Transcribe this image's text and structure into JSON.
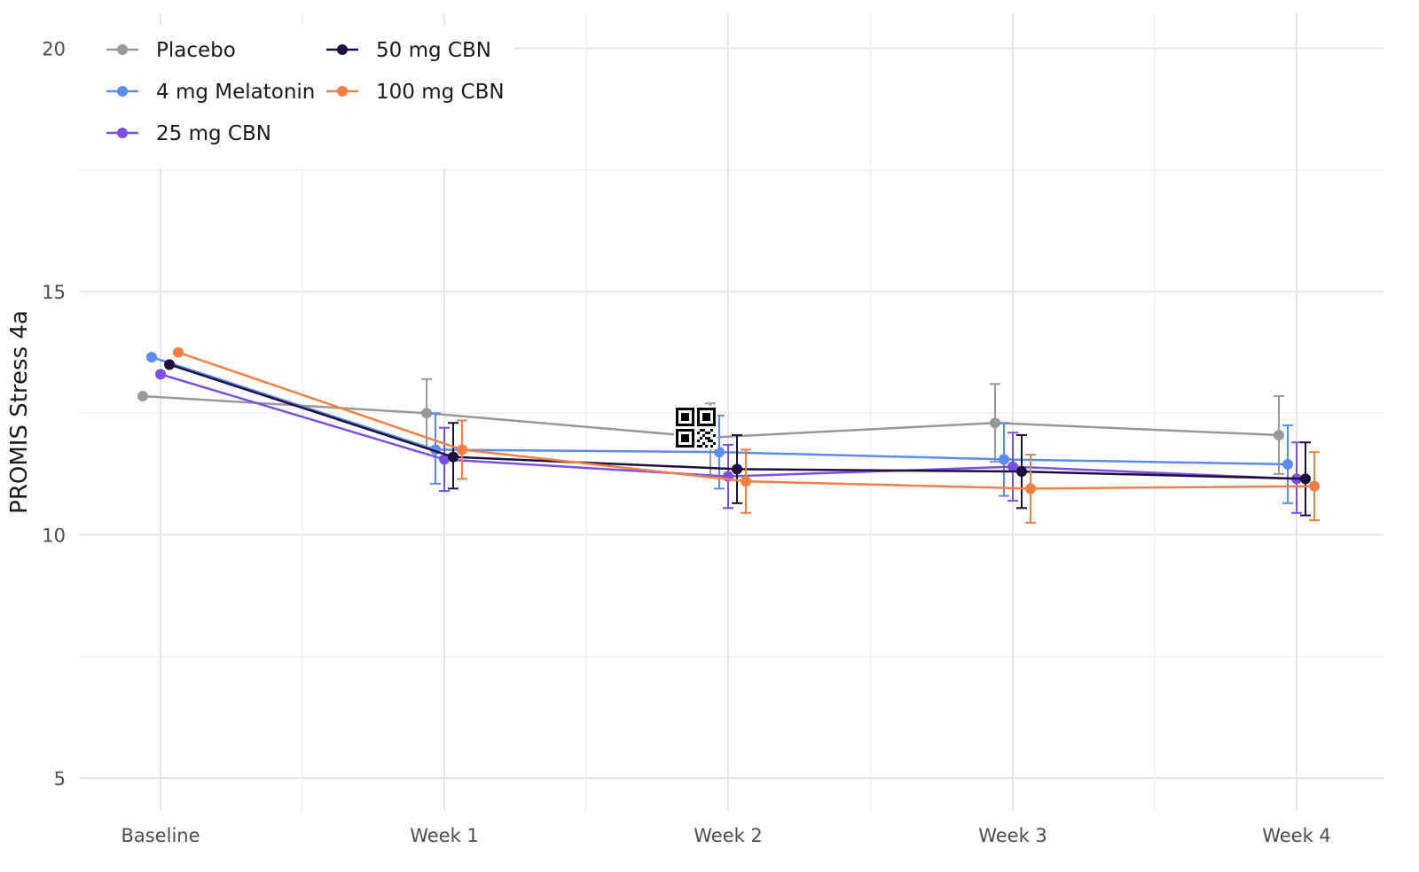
{
  "chart_data": {
    "type": "line",
    "title": "",
    "xlabel": "",
    "ylabel": "PROMIS Stress 4a",
    "categories": [
      "Baseline",
      "Week 1",
      "Week 2",
      "Week 3",
      "Week 4"
    ],
    "ylim": [
      4.3,
      21
    ],
    "yticks": [
      5,
      10,
      15,
      20
    ],
    "grid": true,
    "legend_position": "top-left",
    "series": [
      {
        "name": "Placebo",
        "color": "#999999",
        "values": [
          12.85,
          12.5,
          12.0,
          12.3,
          12.05
        ],
        "error_low": [
          null,
          11.8,
          11.2,
          11.5,
          11.25
        ],
        "error_high": [
          null,
          13.2,
          12.7,
          13.1,
          12.85
        ]
      },
      {
        "name": "4 mg Melatonin",
        "color": "#5b8def",
        "values": [
          13.65,
          11.75,
          11.7,
          11.55,
          11.45
        ],
        "error_low": [
          null,
          11.05,
          10.95,
          10.8,
          10.65
        ],
        "error_high": [
          null,
          12.5,
          12.45,
          12.3,
          12.25
        ]
      },
      {
        "name": "25 mg CBN",
        "color": "#7b4fe0",
        "values": [
          13.3,
          11.55,
          11.2,
          11.4,
          11.15
        ],
        "error_low": [
          null,
          10.9,
          10.55,
          10.7,
          10.45
        ],
        "error_high": [
          null,
          12.2,
          11.85,
          12.1,
          11.9
        ]
      },
      {
        "name": "50 mg CBN",
        "color": "#1e0f3d",
        "values": [
          13.5,
          11.6,
          11.35,
          11.3,
          11.15
        ],
        "error_low": [
          null,
          10.95,
          10.65,
          10.55,
          10.4
        ],
        "error_high": [
          null,
          12.3,
          12.05,
          12.05,
          11.9
        ]
      },
      {
        "name": "100 mg CBN",
        "color": "#f47f45",
        "values": [
          13.75,
          11.75,
          11.1,
          10.95,
          11.0
        ],
        "error_low": [
          null,
          11.15,
          10.45,
          10.25,
          10.3
        ],
        "error_high": [
          null,
          12.35,
          11.75,
          11.65,
          11.7
        ]
      }
    ]
  }
}
